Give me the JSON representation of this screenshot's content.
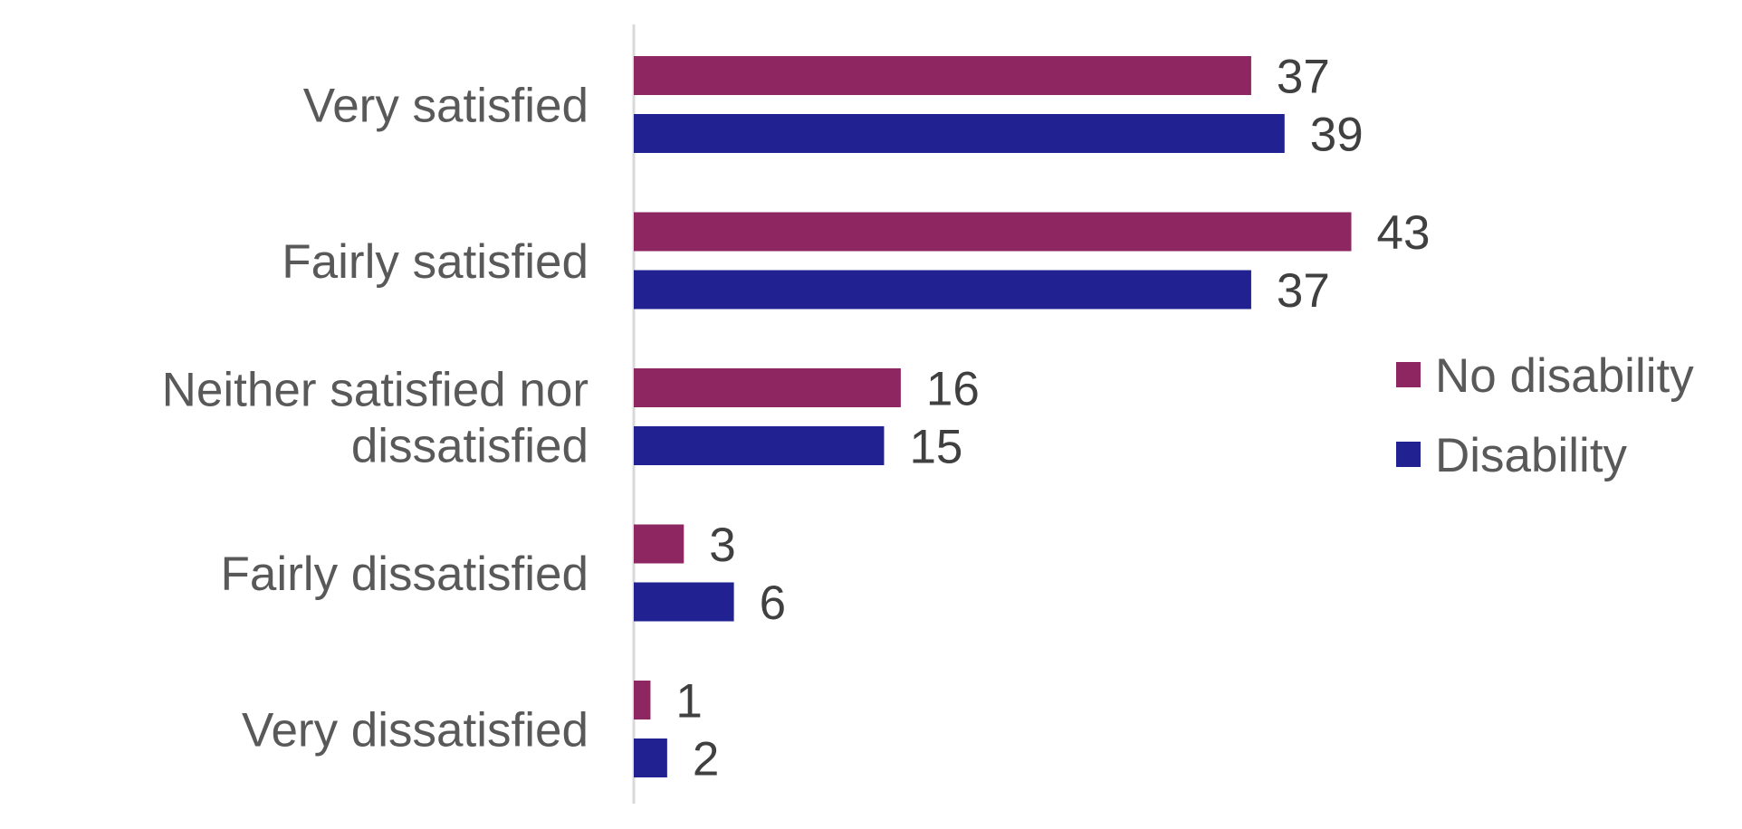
{
  "chart_data": {
    "type": "bar",
    "orientation": "horizontal",
    "title": "",
    "xlabel": "",
    "ylabel": "",
    "xlim": [
      0,
      50
    ],
    "grid": false,
    "legend_position": "right",
    "categories": [
      "Very satisfied",
      "Fairly satisfied",
      "Neither satisfied nor dissatisfied",
      "Fairly dissatisfied",
      "Very dissatisfied"
    ],
    "category_lines": [
      [
        "Very satisfied"
      ],
      [
        "Fairly satisfied"
      ],
      [
        "Neither satisfied nor",
        "dissatisfied"
      ],
      [
        "Fairly dissatisfied"
      ],
      [
        "Very dissatisfied"
      ]
    ],
    "series": [
      {
        "name": "No disability",
        "color": "#8E2662",
        "values": [
          37,
          43,
          16,
          3,
          1
        ]
      },
      {
        "name": "Disability",
        "color": "#212191",
        "values": [
          39,
          37,
          15,
          6,
          2
        ]
      }
    ]
  }
}
